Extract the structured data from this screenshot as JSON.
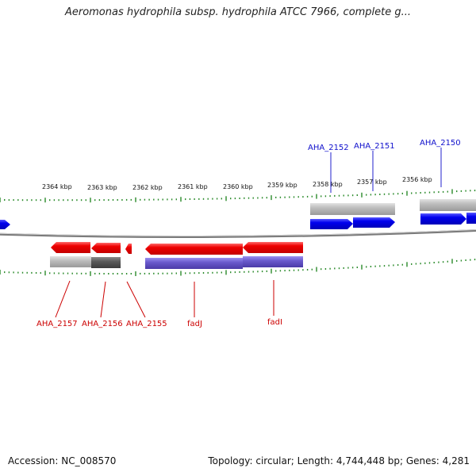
{
  "title": "Aeromonas hydrophila subsp. hydrophila ATCC 7966, complete g...",
  "footer": {
    "accession": "Accession: NC_008570",
    "summary": "Topology: circular; Length: 4,744,448 bp; Genes: 4,281"
  },
  "colors": {
    "forward_gene": "#0000ee",
    "reverse_gene": "#ee0000",
    "reverse_gene_dark": "#bb0000",
    "cog_light": "#bdbdbd",
    "cog_dark": "#5a5a5a",
    "cog_purple": "#6a5acd",
    "tick_green": "#2a8a2a",
    "backbone": "#888888"
  },
  "kbp_labels": [
    "2364 kbp",
    "2363 kbp",
    "2362 kbp",
    "2361 kbp",
    "2360 kbp",
    "2359 kbp",
    "2358 kbp",
    "2357 kbp",
    "2356 kbp"
  ],
  "top_gene_labels": [
    "AHA_2152",
    "AHA_2151",
    "AHA_2150"
  ],
  "bottom_gene_labels": [
    "AHA_2157",
    "AHA_2156",
    "AHA_2155",
    "fadJ",
    "fadI"
  ]
}
